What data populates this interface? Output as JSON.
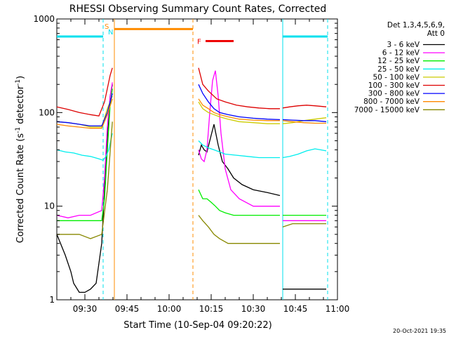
{
  "chart_data": {
    "type": "line",
    "title": "RHESSI Observing Summary Count Rates, Corrected",
    "xlabel": "Start Time (10-Sep-04 09:20:22)",
    "ylabel_main": "Corrected Count Rate (s",
    "ylabel_sup1": "-1",
    "ylabel_mid": " detector",
    "ylabel_sup2": "-1",
    "ylabel_end": ")",
    "y_scale": "log",
    "ylim": [
      1,
      1000
    ],
    "xlim_minutes": [
      0,
      100
    ],
    "x_tick_minutes": [
      10,
      25,
      40,
      55,
      70,
      85,
      100
    ],
    "x_tick_labels": [
      "09:30",
      "09:45",
      "10:00",
      "10:15",
      "10:30",
      "10:45",
      "11:00"
    ],
    "y_tick_values": [
      1,
      10,
      100,
      1000
    ],
    "y_tick_labels": [
      "1",
      "10",
      "100",
      "1000"
    ],
    "legend_header": [
      "Det 1,3,4,5,6,9,",
      "Att 0"
    ],
    "legend_position": "right",
    "footer_date": "20-Oct-2021 19:35",
    "flags": {
      "saa_label": "S",
      "night_label": "N",
      "flare_label": "F",
      "night_color": "#00e0ee",
      "saa_color": "#ff8c00",
      "flare_color": "#ee0000",
      "night_intervals": [
        [
          0,
          16.5
        ],
        [
          80.5,
          96.5
        ]
      ],
      "saa_interval": [
        20.5,
        48.5
      ],
      "flare_interval": [
        53,
        63
      ],
      "night_bar_level": 650,
      "saa_bar_level": 780,
      "flare_bar_level": 580,
      "dashed_lines_cyan": [
        16.5,
        96.5
      ],
      "dashed_lines_orange": [
        48.5
      ],
      "solid_lines_cyan": [
        80.5
      ],
      "solid_lines_orange": [
        20.5
      ]
    },
    "series": [
      {
        "name": "3 - 6 keV",
        "color": "#000000",
        "segment1": {
          "x": [
            0,
            3,
            5,
            6,
            8,
            10,
            12,
            14,
            16,
            17,
            18,
            19,
            19.8
          ],
          "y": [
            5,
            3,
            2,
            1.5,
            1.2,
            1.2,
            1.3,
            1.5,
            4,
            15,
            50,
            150,
            200
          ]
        },
        "segment2": {
          "x": [
            50.5,
            51.5,
            52.5,
            53.5,
            54.5,
            56,
            57.5,
            59,
            61,
            63,
            66,
            70,
            75,
            79.5
          ],
          "y": [
            35,
            45,
            40,
            38,
            50,
            75,
            45,
            30,
            25,
            20,
            17,
            15,
            14,
            13
          ]
        },
        "segment3": {
          "x": [
            80.5,
            82,
            84,
            86,
            88,
            90,
            92,
            94,
            96
          ],
          "y": [
            1.3,
            1.3,
            1.3,
            1.3,
            1.3,
            1.3,
            1.3,
            1.3,
            1.3
          ]
        }
      },
      {
        "name": "6 - 12 keV",
        "color": "#ff00ff",
        "segment1": {
          "x": [
            0,
            4,
            8,
            12,
            16,
            17,
            18,
            19,
            19.8
          ],
          "y": [
            8,
            7.5,
            8,
            8,
            9,
            20,
            70,
            150,
            210
          ]
        },
        "segment2": {
          "x": [
            50.5,
            51.5,
            52.5,
            53.5,
            54.5,
            55.5,
            56.5,
            57.5,
            58.5,
            60,
            62,
            65,
            70,
            75,
            79.5
          ],
          "y": [
            40,
            32,
            30,
            40,
            100,
            220,
            280,
            150,
            60,
            25,
            15,
            12,
            10,
            10,
            10
          ]
        },
        "segment3": {
          "x": [
            80.5,
            84,
            88,
            92,
            96
          ],
          "y": [
            7,
            7,
            7,
            7,
            7
          ]
        }
      },
      {
        "name": "12 - 25 keV",
        "color": "#00ee00",
        "segment1": {
          "x": [
            0,
            4,
            8,
            12,
            16,
            17,
            18,
            19,
            19.8
          ],
          "y": [
            7,
            7,
            7,
            7,
            7,
            12,
            40,
            120,
            180
          ]
        },
        "segment2": {
          "x": [
            50.5,
            52,
            53.5,
            55,
            56.5,
            58,
            60,
            63,
            67,
            72,
            79.5
          ],
          "y": [
            15,
            12,
            12,
            11,
            10,
            9,
            8.5,
            8,
            8,
            8,
            8
          ]
        },
        "segment3": {
          "x": [
            80.5,
            84,
            88,
            92,
            96
          ],
          "y": [
            8,
            8,
            8,
            8,
            8
          ]
        }
      },
      {
        "name": "25 - 50 keV",
        "color": "#00eeee",
        "segment1": {
          "x": [
            0,
            3,
            6,
            9,
            12,
            15,
            16.5,
            17.5,
            18.5,
            19.5,
            19.8
          ],
          "y": [
            40,
            38,
            37,
            35,
            34,
            32,
            31,
            34,
            40,
            55,
            60
          ]
        },
        "segment2": {
          "x": [
            50.5,
            52,
            54,
            56,
            58,
            60,
            64,
            68,
            72,
            76,
            79.5
          ],
          "y": [
            50,
            45,
            42,
            40,
            38,
            36,
            35,
            34,
            33,
            33,
            33
          ]
        },
        "segment3": {
          "x": [
            80.5,
            83,
            86,
            89,
            92,
            94,
            96
          ],
          "y": [
            33,
            34,
            36,
            39,
            41,
            40,
            39
          ]
        }
      },
      {
        "name": "50 - 100 keV",
        "color": "#cccc00",
        "segment1": {
          "x": [
            0,
            4,
            8,
            12,
            16,
            18,
            19.8
          ],
          "y": [
            80,
            78,
            75,
            70,
            70,
            110,
            150
          ]
        },
        "segment2": {
          "x": [
            50.5,
            52,
            54,
            56,
            58,
            61,
            65,
            70,
            75,
            79.5
          ],
          "y": [
            130,
            110,
            100,
            95,
            90,
            85,
            80,
            78,
            76,
            76
          ]
        },
        "segment3": {
          "x": [
            80.5,
            84,
            88,
            92,
            96
          ],
          "y": [
            76,
            78,
            82,
            85,
            88
          ]
        }
      },
      {
        "name": "100 - 300 keV",
        "color": "#dd0000",
        "segment1": {
          "x": [
            0,
            4,
            8,
            12,
            15,
            17,
            19,
            19.8
          ],
          "y": [
            115,
            108,
            100,
            95,
            92,
            130,
            250,
            300
          ]
        },
        "segment2": {
          "x": [
            50.5,
            52,
            54,
            57,
            60,
            64,
            68,
            72,
            76,
            79.5
          ],
          "y": [
            300,
            200,
            170,
            140,
            130,
            120,
            115,
            112,
            110,
            110
          ]
        },
        "segment3": {
          "x": [
            80.5,
            83,
            86,
            89,
            92,
            96
          ],
          "y": [
            112,
            115,
            118,
            120,
            118,
            115
          ]
        }
      },
      {
        "name": "300 - 800 keV",
        "color": "#0000ff",
        "segment1": {
          "x": [
            0,
            4,
            8,
            12,
            16,
            18,
            19.8
          ],
          "y": [
            80,
            78,
            75,
            72,
            72,
            100,
            160
          ]
        },
        "segment2": {
          "x": [
            50.5,
            52,
            54,
            56,
            58,
            61,
            65,
            70,
            75,
            79.5
          ],
          "y": [
            200,
            160,
            130,
            110,
            100,
            95,
            90,
            87,
            85,
            84
          ]
        },
        "segment3": {
          "x": [
            80.5,
            84,
            88,
            92,
            96
          ],
          "y": [
            84,
            83,
            82,
            82,
            80
          ]
        }
      },
      {
        "name": "800 - 7000 keV",
        "color": "#ff8800",
        "segment1": {
          "x": [
            0,
            4,
            8,
            12,
            16,
            18,
            19.8
          ],
          "y": [
            75,
            72,
            70,
            68,
            68,
            95,
            140
          ]
        },
        "segment2": {
          "x": [
            50.5,
            52,
            54,
            56,
            58,
            61,
            65,
            70,
            75,
            79.5
          ],
          "y": [
            140,
            120,
            110,
            100,
            95,
            90,
            85,
            83,
            82,
            82
          ]
        },
        "segment3": {
          "x": [
            80.5,
            84,
            88,
            92,
            96
          ],
          "y": [
            82,
            80,
            78,
            77,
            77
          ]
        }
      },
      {
        "name": "7000 - 15000 keV",
        "color": "#888800",
        "segment1": {
          "x": [
            0,
            4,
            8,
            12,
            16,
            18,
            19.8
          ],
          "y": [
            5,
            5,
            5,
            4.5,
            5,
            15,
            80
          ]
        },
        "segment2": {
          "x": [
            50.5,
            52,
            54,
            56,
            58,
            61,
            65,
            70,
            75,
            79.5
          ],
          "y": [
            8,
            7,
            6,
            5,
            4.5,
            4,
            4,
            4,
            4,
            4
          ]
        },
        "segment3": {
          "x": [
            80.5,
            84,
            88,
            92,
            96
          ],
          "y": [
            6,
            6.5,
            6.5,
            6.5,
            6.5
          ]
        }
      }
    ]
  }
}
